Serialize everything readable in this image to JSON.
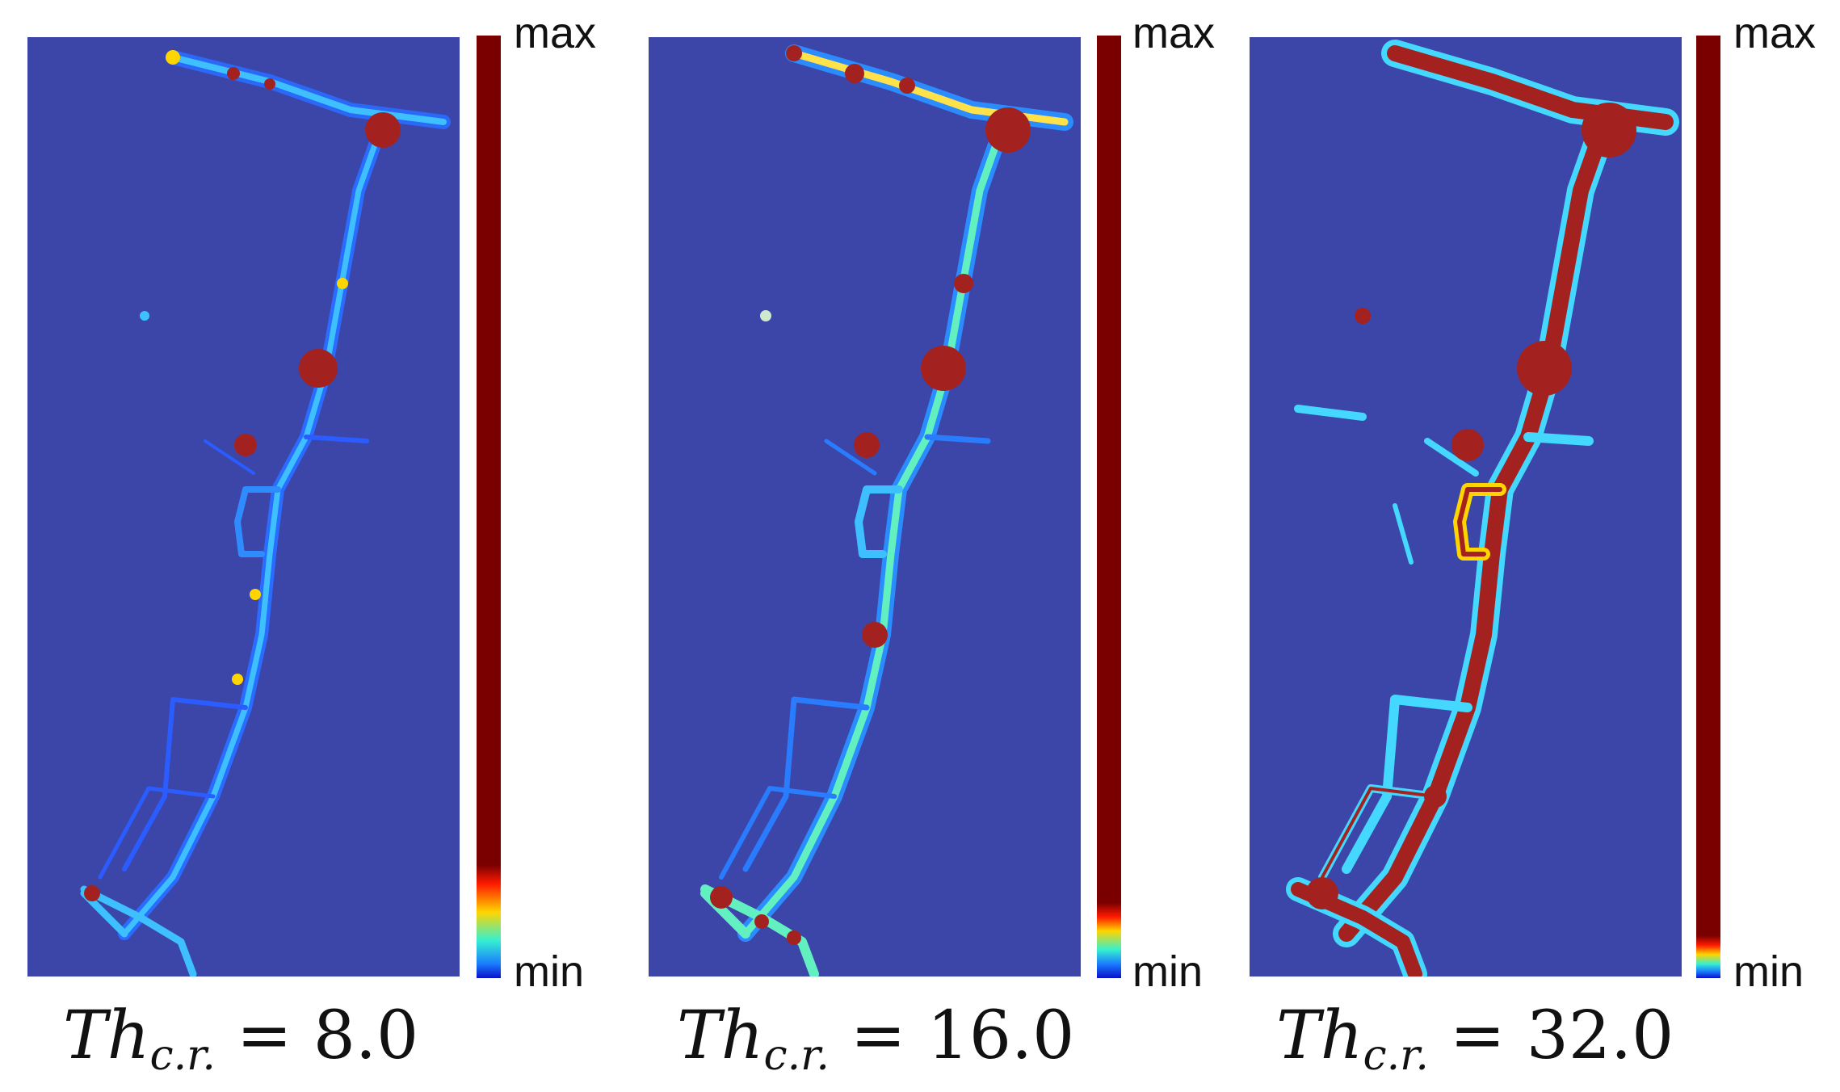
{
  "panels": [
    {
      "colorbar": {
        "max_label": "max",
        "min_label": "min",
        "bands": [
          "#7a0000",
          "#7a0000",
          "#ff1a00",
          "#ffd500",
          "#35f0d0",
          "#1a7cff",
          "#0a10c8"
        ],
        "stops": [
          0,
          0.88,
          0.9,
          0.93,
          0.96,
          0.985,
          1
        ]
      },
      "caption": {
        "symbol": "Th",
        "subscript": "c.r.",
        "equals": "=",
        "value": "8.0"
      },
      "route_color": "#26a8ff",
      "hot_color": "#a3221f"
    },
    {
      "colorbar": {
        "max_label": "max",
        "min_label": "min",
        "bands": [
          "#7a0000",
          "#7a0000",
          "#ff1a00",
          "#ffd500",
          "#35f0d0",
          "#1a7cff",
          "#0a10c8"
        ],
        "stops": [
          0,
          0.92,
          0.935,
          0.95,
          0.97,
          0.985,
          1
        ]
      },
      "caption": {
        "symbol": "Th",
        "subscript": "c.r.",
        "equals": "=",
        "value": "16.0"
      },
      "route_color": "#3fd0ff",
      "hot_color": "#a3221f"
    },
    {
      "colorbar": {
        "max_label": "max",
        "min_label": "min",
        "bands": [
          "#7a0000",
          "#7a0000",
          "#ff1a00",
          "#ffd500",
          "#35f0d0",
          "#1a7cff",
          "#0a10c8"
        ],
        "stops": [
          0,
          0.955,
          0.965,
          0.975,
          0.985,
          0.993,
          1
        ]
      },
      "caption": {
        "symbol": "Th",
        "subscript": "c.r.",
        "equals": "=",
        "value": "32.0"
      },
      "route_color": "#44d8ff",
      "hot_color": "#a3221f"
    }
  ]
}
